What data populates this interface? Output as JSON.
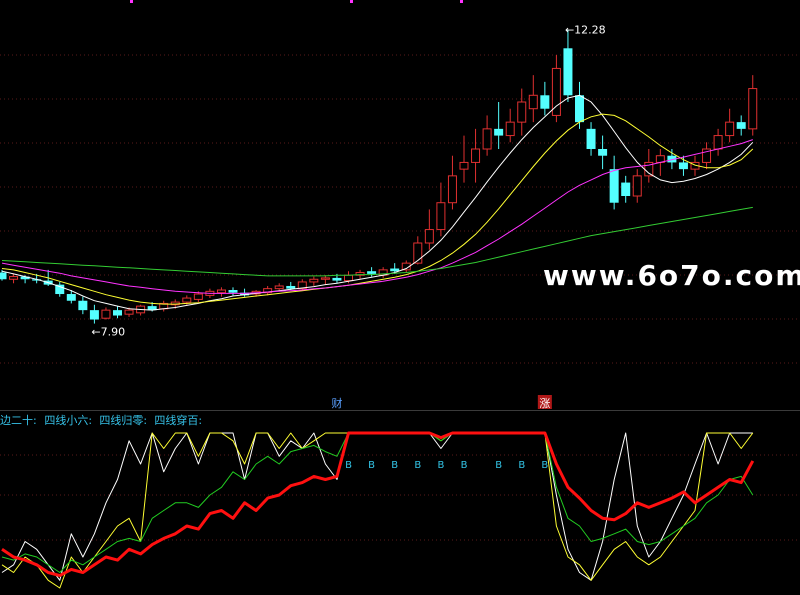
{
  "chart_data": [
    {
      "type": "candlestick",
      "title": "",
      "ylim": [
        7.0,
        12.6
      ],
      "price_labels": {
        "high": "12.28",
        "low": "7.90",
        "high_marker": "←12.28",
        "low_marker": "←7.90"
      },
      "watermark": "www.6o7o.com",
      "event_markers": [
        {
          "label": "财",
          "bar_index": 29,
          "color": "#5aa0ff"
        },
        {
          "label": "涨",
          "bar_index": 47,
          "color": "#ffffff",
          "bg": "#b01818"
        }
      ],
      "colors": {
        "up": "#e03030",
        "down": "#54ffff",
        "bg": "#000000"
      },
      "candles": [
        [
          8.66,
          8.7,
          8.54,
          8.56
        ],
        [
          8.56,
          8.64,
          8.5,
          8.6
        ],
        [
          8.6,
          8.62,
          8.5,
          8.56
        ],
        [
          8.56,
          8.64,
          8.5,
          8.54
        ],
        [
          8.54,
          8.7,
          8.46,
          8.48
        ],
        [
          8.48,
          8.52,
          8.3,
          8.34
        ],
        [
          8.34,
          8.4,
          8.2,
          8.24
        ],
        [
          8.24,
          8.3,
          8.04,
          8.1
        ],
        [
          8.1,
          8.18,
          7.9,
          7.96
        ],
        [
          7.98,
          8.14,
          7.96,
          8.1
        ],
        [
          8.1,
          8.16,
          7.98,
          8.02
        ],
        [
          8.04,
          8.14,
          8.0,
          8.1
        ],
        [
          8.06,
          8.18,
          8.02,
          8.16
        ],
        [
          8.16,
          8.22,
          8.08,
          8.1
        ],
        [
          8.12,
          8.24,
          8.08,
          8.2
        ],
        [
          8.18,
          8.26,
          8.12,
          8.22
        ],
        [
          8.22,
          8.32,
          8.18,
          8.28
        ],
        [
          8.26,
          8.38,
          8.22,
          8.34
        ],
        [
          8.32,
          8.42,
          8.28,
          8.38
        ],
        [
          8.36,
          8.44,
          8.3,
          8.4
        ],
        [
          8.4,
          8.44,
          8.32,
          8.36
        ],
        [
          8.36,
          8.42,
          8.3,
          8.32
        ],
        [
          8.34,
          8.4,
          8.3,
          8.38
        ],
        [
          8.36,
          8.46,
          8.32,
          8.42
        ],
        [
          8.42,
          8.5,
          8.38,
          8.46
        ],
        [
          8.46,
          8.52,
          8.4,
          8.42
        ],
        [
          8.42,
          8.56,
          8.4,
          8.52
        ],
        [
          8.52,
          8.6,
          8.46,
          8.56
        ],
        [
          8.56,
          8.62,
          8.48,
          8.58
        ],
        [
          8.58,
          8.64,
          8.5,
          8.54
        ],
        [
          8.54,
          8.68,
          8.5,
          8.62
        ],
        [
          8.62,
          8.7,
          8.56,
          8.66
        ],
        [
          8.68,
          8.74,
          8.6,
          8.64
        ],
        [
          8.62,
          8.74,
          8.58,
          8.7
        ],
        [
          8.72,
          8.8,
          8.64,
          8.68
        ],
        [
          8.7,
          8.84,
          8.66,
          8.8
        ],
        [
          8.8,
          9.2,
          8.78,
          9.1
        ],
        [
          9.1,
          9.6,
          9.0,
          9.3
        ],
        [
          9.3,
          10.0,
          9.2,
          9.7
        ],
        [
          9.7,
          10.4,
          9.6,
          10.1
        ],
        [
          10.2,
          10.7,
          10.0,
          10.3
        ],
        [
          10.3,
          10.8,
          10.0,
          10.5
        ],
        [
          10.5,
          11.0,
          10.4,
          10.8
        ],
        [
          10.8,
          11.2,
          10.5,
          10.7
        ],
        [
          10.7,
          11.1,
          10.6,
          10.9
        ],
        [
          10.9,
          11.4,
          10.7,
          11.2
        ],
        [
          11.1,
          11.6,
          10.9,
          11.3
        ],
        [
          11.3,
          11.5,
          11.0,
          11.1
        ],
        [
          11.0,
          11.9,
          10.9,
          11.7
        ],
        [
          12.0,
          12.28,
          11.2,
          11.3
        ],
        [
          11.3,
          11.5,
          10.8,
          10.9
        ],
        [
          10.8,
          10.9,
          10.4,
          10.5
        ],
        [
          10.5,
          10.7,
          10.2,
          10.4
        ],
        [
          10.2,
          10.4,
          9.6,
          9.7
        ],
        [
          10.0,
          10.1,
          9.7,
          9.8
        ],
        [
          9.8,
          10.2,
          9.7,
          10.1
        ],
        [
          10.1,
          10.5,
          10.0,
          10.3
        ],
        [
          10.3,
          10.5,
          10.1,
          10.4
        ],
        [
          10.4,
          10.5,
          10.2,
          10.3
        ],
        [
          10.3,
          10.4,
          10.1,
          10.2
        ],
        [
          10.2,
          10.4,
          10.1,
          10.3
        ],
        [
          10.3,
          10.6,
          10.2,
          10.5
        ],
        [
          10.5,
          10.8,
          10.4,
          10.7
        ],
        [
          10.7,
          11.1,
          10.6,
          10.9
        ],
        [
          10.9,
          11.0,
          10.7,
          10.8
        ],
        [
          10.8,
          11.6,
          10.7,
          11.4
        ]
      ],
      "moving_averages": [
        {
          "color": "#ffffff",
          "values": [
            8.68,
            8.64,
            8.6,
            8.56,
            8.51,
            8.45,
            8.39,
            8.31,
            8.24,
            8.2,
            8.16,
            8.12,
            8.11,
            8.1,
            8.12,
            8.14,
            8.17,
            8.2,
            8.24,
            8.27,
            8.31,
            8.33,
            8.35,
            8.37,
            8.39,
            8.41,
            8.43,
            8.45,
            8.48,
            8.5,
            8.53,
            8.56,
            8.59,
            8.62,
            8.66,
            8.72,
            8.84,
            8.98,
            9.14,
            9.34,
            9.56,
            9.78,
            10.01,
            10.23,
            10.44,
            10.64,
            10.82,
            10.98,
            11.14,
            11.26,
            11.3,
            11.2,
            11.0,
            10.76,
            10.52,
            10.3,
            10.14,
            10.04,
            10.0,
            10.02,
            10.06,
            10.12,
            10.2,
            10.3,
            10.42,
            10.6
          ]
        },
        {
          "color": "#ffff33",
          "values": [
            8.72,
            8.7,
            8.66,
            8.62,
            8.58,
            8.53,
            8.48,
            8.43,
            8.38,
            8.33,
            8.29,
            8.25,
            8.22,
            8.2,
            8.19,
            8.19,
            8.2,
            8.21,
            8.23,
            8.25,
            8.27,
            8.29,
            8.31,
            8.33,
            8.35,
            8.37,
            8.39,
            8.41,
            8.43,
            8.45,
            8.47,
            8.5,
            8.53,
            8.56,
            8.59,
            8.63,
            8.68,
            8.75,
            8.84,
            8.95,
            9.08,
            9.23,
            9.41,
            9.61,
            9.82,
            10.03,
            10.24,
            10.44,
            10.62,
            10.78,
            10.9,
            10.98,
            11.02,
            11.0,
            10.92,
            10.8,
            10.68,
            10.55,
            10.44,
            10.34,
            10.26,
            10.22,
            10.22,
            10.26,
            10.34,
            10.5
          ]
        },
        {
          "color": "#ff33ff",
          "values": [
            8.8,
            8.77,
            8.74,
            8.71,
            8.68,
            8.65,
            8.61,
            8.58,
            8.55,
            8.52,
            8.49,
            8.46,
            8.44,
            8.42,
            8.4,
            8.38,
            8.37,
            8.36,
            8.35,
            8.35,
            8.35,
            8.35,
            8.36,
            8.37,
            8.38,
            8.39,
            8.4,
            8.42,
            8.43,
            8.45,
            8.47,
            8.49,
            8.51,
            8.53,
            8.56,
            8.59,
            8.63,
            8.68,
            8.73,
            8.8,
            8.88,
            8.96,
            9.06,
            9.16,
            9.27,
            9.38,
            9.5,
            9.62,
            9.74,
            9.86,
            9.96,
            10.04,
            10.12,
            10.18,
            10.22,
            10.24,
            10.26,
            10.3,
            10.34,
            10.38,
            10.42,
            10.46,
            10.5,
            10.54,
            10.58,
            10.64
          ]
        },
        {
          "color": "#33cc33",
          "values": [
            8.84,
            8.83,
            8.82,
            8.81,
            8.8,
            8.79,
            8.78,
            8.77,
            8.76,
            8.75,
            8.74,
            8.73,
            8.72,
            8.71,
            8.7,
            8.69,
            8.68,
            8.67,
            8.66,
            8.65,
            8.64,
            8.63,
            8.62,
            8.61,
            8.61,
            8.61,
            8.61,
            8.61,
            8.61,
            8.62,
            8.62,
            8.63,
            8.63,
            8.64,
            8.65,
            8.66,
            8.68,
            8.7,
            8.72,
            8.75,
            8.78,
            8.81,
            8.85,
            8.89,
            8.93,
            8.97,
            9.01,
            9.05,
            9.09,
            9.13,
            9.17,
            9.21,
            9.24,
            9.27,
            9.3,
            9.33,
            9.36,
            9.39,
            9.42,
            9.45,
            9.48,
            9.51,
            9.54,
            9.57,
            9.6,
            9.63
          ]
        }
      ]
    },
    {
      "type": "line",
      "legend": [
        {
          "label": "边二十:",
          "color": "#36c2e8"
        },
        {
          "label": "四线小六:",
          "color": "#36c2e8"
        },
        {
          "label": "四线归零:",
          "color": "#36c2e8"
        },
        {
          "label": "四线穿百:",
          "color": "#36c2e8"
        }
      ],
      "ylim": [
        0,
        100
      ],
      "signal_label": "B",
      "signal_indices": [
        30,
        32,
        34,
        36,
        38,
        40,
        43,
        45,
        47
      ],
      "series": [
        {
          "color": "#ffffff",
          "width": 1,
          "values": [
            10,
            15,
            30,
            25,
            15,
            5,
            35,
            20,
            35,
            55,
            70,
            95,
            80,
            100,
            75,
            90,
            100,
            80,
            100,
            100,
            100,
            70,
            100,
            100,
            85,
            95,
            90,
            100,
            80,
            70,
            100,
            100,
            100,
            100,
            100,
            100,
            100,
            100,
            90,
            100,
            100,
            100,
            100,
            100,
            100,
            100,
            100,
            100,
            60,
            25,
            10,
            5,
            30,
            70,
            100,
            40,
            20,
            30,
            45,
            60,
            80,
            100,
            80,
            100,
            100,
            100
          ]
        },
        {
          "color": "#ffff33",
          "width": 1,
          "values": [
            15,
            10,
            20,
            15,
            5,
            0,
            20,
            10,
            20,
            30,
            40,
            45,
            30,
            100,
            90,
            100,
            100,
            85,
            100,
            100,
            95,
            80,
            100,
            100,
            90,
            100,
            90,
            95,
            100,
            100,
            100,
            100,
            100,
            100,
            100,
            100,
            100,
            100,
            95,
            100,
            100,
            100,
            100,
            100,
            100,
            100,
            100,
            100,
            40,
            20,
            15,
            5,
            15,
            25,
            30,
            20,
            15,
            20,
            30,
            40,
            50,
            100,
            100,
            100,
            90,
            100
          ]
        },
        {
          "color": "#22cc22",
          "width": 1,
          "values": [
            20,
            18,
            22,
            20,
            15,
            10,
            18,
            15,
            20,
            25,
            30,
            32,
            30,
            45,
            50,
            55,
            55,
            52,
            60,
            65,
            75,
            70,
            80,
            85,
            80,
            88,
            90,
            92,
            88,
            85,
            100,
            100,
            100,
            100,
            100,
            100,
            100,
            100,
            95,
            100,
            100,
            100,
            100,
            100,
            100,
            100,
            100,
            100,
            65,
            45,
            40,
            30,
            32,
            35,
            38,
            30,
            28,
            30,
            35,
            40,
            45,
            55,
            60,
            70,
            72,
            60
          ]
        },
        {
          "color": "#ff1010",
          "width": 3,
          "values": [
            25,
            20,
            18,
            15,
            10,
            8,
            12,
            10,
            15,
            20,
            18,
            25,
            22,
            28,
            32,
            35,
            40,
            38,
            48,
            50,
            45,
            55,
            50,
            58,
            60,
            66,
            68,
            72,
            70,
            72,
            100,
            100,
            100,
            100,
            100,
            100,
            100,
            100,
            97,
            100,
            100,
            100,
            100,
            100,
            100,
            100,
            100,
            100,
            80,
            65,
            58,
            50,
            45,
            44,
            48,
            55,
            52,
            55,
            58,
            62,
            55,
            60,
            65,
            70,
            68,
            82
          ]
        }
      ]
    }
  ]
}
